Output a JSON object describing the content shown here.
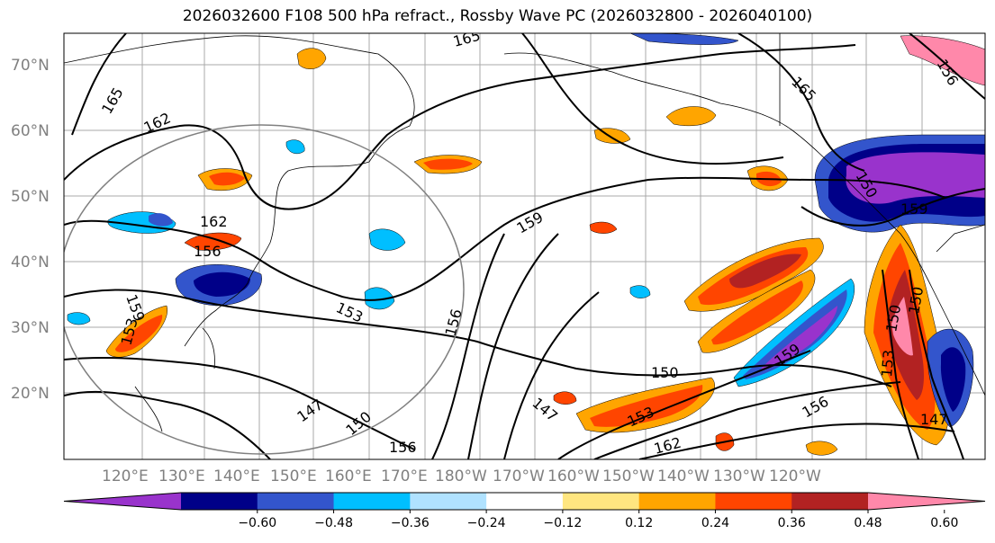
{
  "title": "2026032600 F108 500 hPa refract., Rossby Wave PC (2026032800 - 2026040100)",
  "latitude_labels": [
    "70°N",
    "60°N",
    "50°N",
    "40°N",
    "30°N",
    "20°N"
  ],
  "longitude_labels": [
    "120°E",
    "130°E",
    "140°E",
    "150°E",
    "160°E",
    "170°E",
    "180°W",
    "170°W",
    "160°W",
    "150°W",
    "140°W",
    "130°W",
    "120°W"
  ],
  "contour_labels": [
    "165",
    "165",
    "162",
    "165",
    "162",
    "156",
    "159",
    "159",
    "153",
    "159",
    "156",
    "153",
    "156",
    "150",
    "150",
    "159",
    "153",
    "150",
    "147",
    "150",
    "147",
    "156",
    "162",
    "153",
    "147",
    "156",
    "150"
  ],
  "colorbar": {
    "ticks": [
      "−0.60",
      "−0.48",
      "−0.36",
      "−0.24",
      "−0.12",
      "0.12",
      "0.24",
      "0.36",
      "0.48",
      "0.60"
    ],
    "colors": [
      "#9933cc",
      "#000088",
      "#3355cc",
      "#00bfff",
      "#b0e2ff",
      "#ffffff",
      "#ffe680",
      "#ffa500",
      "#ff4500",
      "#b22222",
      "#ff88aa"
    ]
  }
}
